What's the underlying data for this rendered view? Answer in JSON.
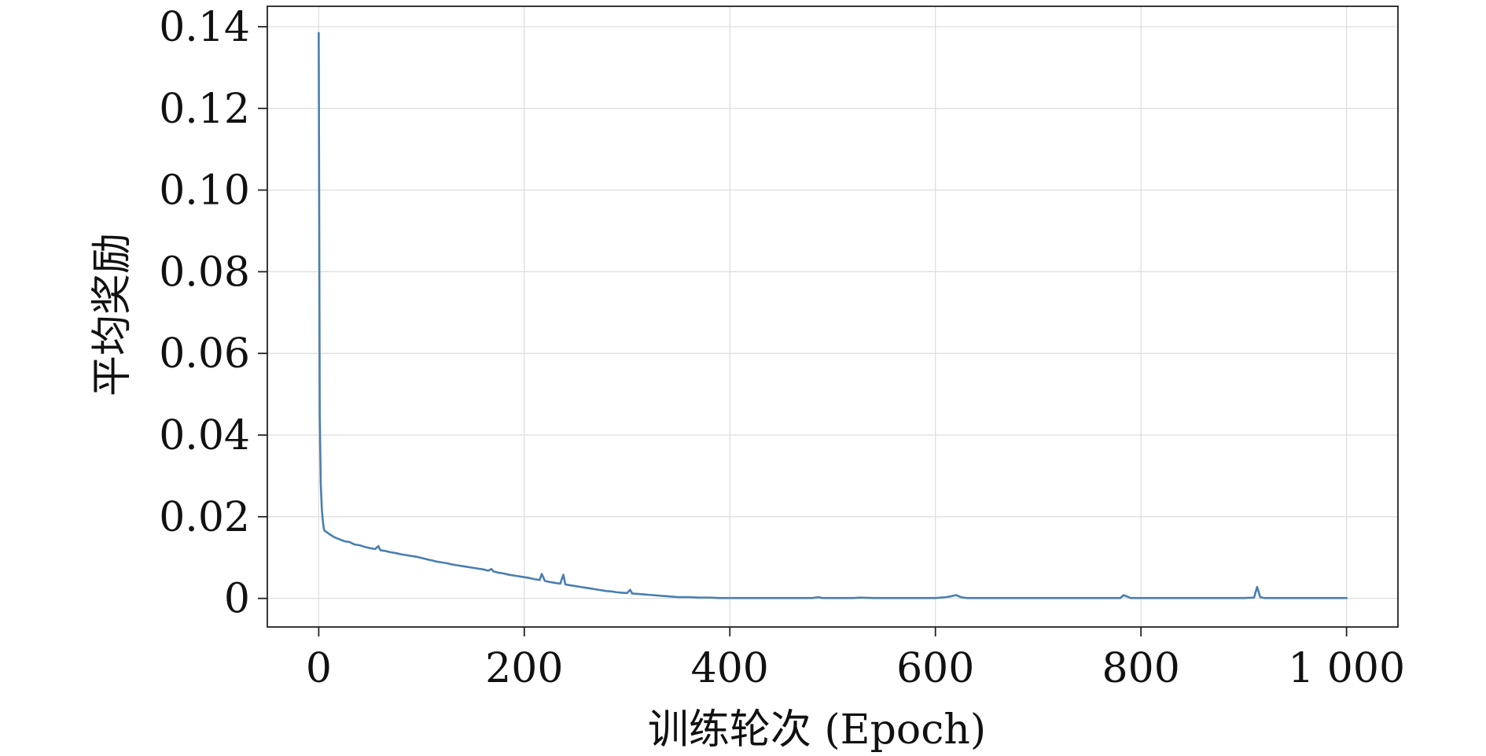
{
  "chart_data": {
    "type": "line",
    "title": "",
    "xlabel": "训练轮次 (Epoch)",
    "ylabel": "平均奖励",
    "xlim": [
      -50,
      1050
    ],
    "ylim": [
      -0.007,
      0.145
    ],
    "grid": true,
    "x_ticks": [
      0,
      200,
      400,
      600,
      800,
      1000
    ],
    "x_tick_labels": [
      "0",
      "200",
      "400",
      "600",
      "800",
      "1 000"
    ],
    "y_ticks": [
      0,
      0.02,
      0.04,
      0.06,
      0.08,
      0.1,
      0.12,
      0.14
    ],
    "y_tick_labels": [
      "0",
      "0.02",
      "0.04",
      "0.06",
      "0.08",
      "0.10",
      "0.12",
      "0.14"
    ],
    "series": [
      {
        "color": "#4a7fb0",
        "x": [
          0,
          1,
          2,
          3,
          4,
          5,
          6,
          8,
          10,
          15,
          20,
          25,
          30,
          35,
          40,
          45,
          50,
          55,
          58,
          60,
          65,
          70,
          75,
          80,
          85,
          90,
          95,
          100,
          105,
          110,
          115,
          120,
          125,
          130,
          135,
          140,
          145,
          150,
          155,
          160,
          165,
          168,
          170,
          175,
          180,
          185,
          190,
          195,
          200,
          205,
          210,
          215,
          217,
          220,
          225,
          230,
          235,
          238,
          240,
          245,
          250,
          255,
          260,
          265,
          270,
          275,
          280,
          285,
          290,
          295,
          300,
          303,
          305,
          310,
          315,
          320,
          325,
          330,
          335,
          340,
          345,
          350,
          360,
          370,
          380,
          390,
          400,
          410,
          420,
          430,
          440,
          450,
          460,
          470,
          480,
          486,
          490,
          500,
          520,
          527,
          540,
          560,
          580,
          600,
          610,
          615,
          620,
          625,
          630,
          640,
          660,
          680,
          700,
          720,
          740,
          760,
          780,
          783,
          790,
          800,
          820,
          840,
          860,
          880,
          900,
          910,
          913,
          916,
          920,
          940,
          960,
          980,
          1000
        ],
        "y": [
          0.1385,
          0.045,
          0.028,
          0.022,
          0.019,
          0.017,
          0.0165,
          0.0162,
          0.0158,
          0.015,
          0.0145,
          0.014,
          0.0138,
          0.0132,
          0.013,
          0.0126,
          0.0123,
          0.0121,
          0.0128,
          0.0118,
          0.0116,
          0.0113,
          0.0111,
          0.0108,
          0.0106,
          0.0104,
          0.0102,
          0.0099,
          0.0096,
          0.0093,
          0.009,
          0.0088,
          0.0086,
          0.0083,
          0.0081,
          0.0079,
          0.0077,
          0.0075,
          0.0073,
          0.0071,
          0.0068,
          0.0072,
          0.0066,
          0.0063,
          0.0061,
          0.0058,
          0.0056,
          0.0054,
          0.0052,
          0.005,
          0.0047,
          0.0045,
          0.006,
          0.0043,
          0.004,
          0.0038,
          0.0036,
          0.0058,
          0.0034,
          0.0032,
          0.003,
          0.0028,
          0.0026,
          0.0024,
          0.0022,
          0.002,
          0.0018,
          0.0017,
          0.0015,
          0.0014,
          0.0013,
          0.0021,
          0.0012,
          0.0011,
          0.001,
          0.0009,
          0.0008,
          0.0007,
          0.0006,
          0.0005,
          0.0004,
          0.0003,
          0.0003,
          0.0002,
          0.0002,
          0.0001,
          0.0001,
          0.0001,
          0.0001,
          0.0001,
          0.0001,
          0.0001,
          0.0001,
          0.0001,
          0.0001,
          0.0003,
          0.0001,
          0.0001,
          0.0001,
          0.0002,
          0.0001,
          0.0001,
          0.0001,
          0.0001,
          0.0003,
          0.0005,
          0.0008,
          0.0003,
          0.0001,
          0.0001,
          0.0001,
          0.0001,
          0.0001,
          0.0001,
          0.0001,
          0.0001,
          0.0001,
          0.0008,
          0.0001,
          0.0001,
          0.0001,
          0.0001,
          0.0001,
          0.0001,
          0.0001,
          0.0002,
          0.0028,
          0.0003,
          0.0001,
          0.0001,
          0.0001,
          0.0001,
          0.0001
        ]
      }
    ]
  }
}
